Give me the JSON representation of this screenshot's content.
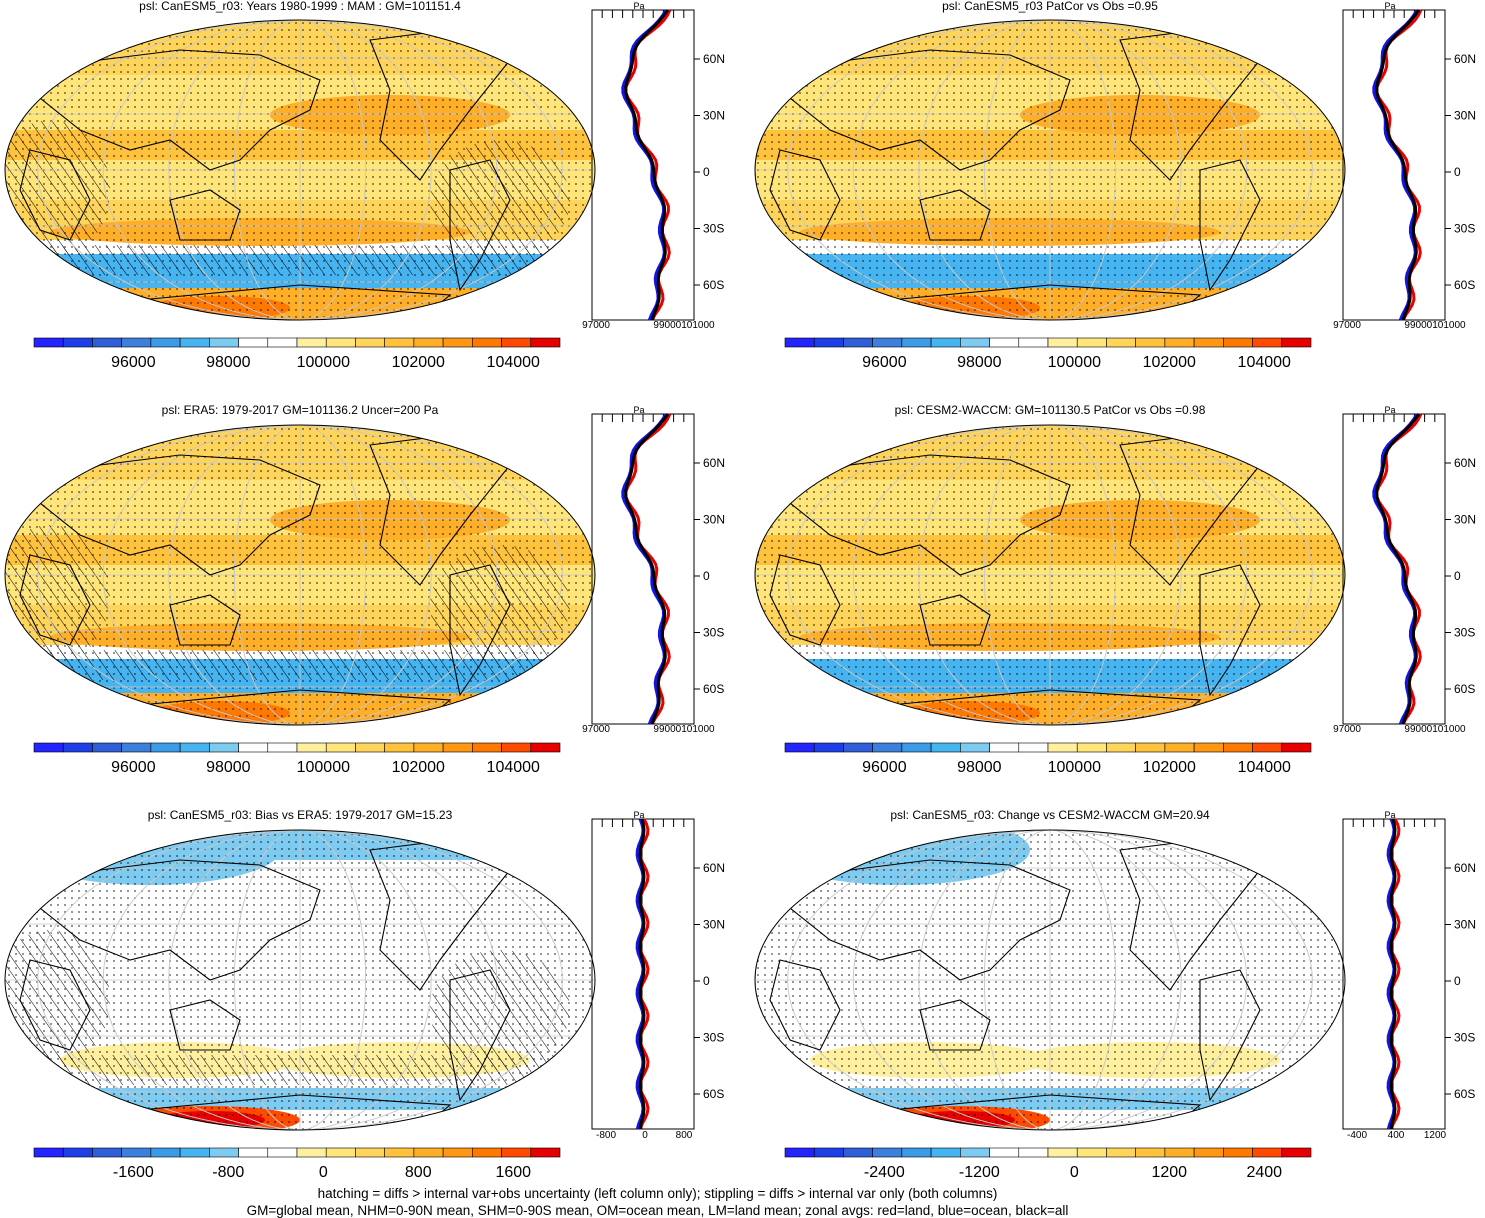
{
  "chart_data": [
    {
      "type": "heatmap",
      "title": "psl: CanESM5_r03: Years 1980-1999 : MAM : GM=101151.4",
      "colorbar": {
        "ticks": [
          "96000",
          "98000",
          "100000",
          "102000",
          "104000"
        ]
      },
      "zonal": {
        "xticks": [
          "97000",
          "99000101000"
        ],
        "yticks": [
          "60N",
          "30N",
          "0",
          "30S",
          "60S"
        ],
        "units": "Pa"
      }
    },
    {
      "type": "heatmap",
      "title": "psl: CanESM5_r03 PatCor vs Obs =0.95",
      "colorbar": {
        "ticks": [
          "96000",
          "98000",
          "100000",
          "102000",
          "104000"
        ]
      },
      "zonal": {
        "xticks": [
          "97000",
          "99000101000"
        ],
        "yticks": [
          "60N",
          "30N",
          "0",
          "30S",
          "60S"
        ],
        "units": "Pa"
      }
    },
    {
      "type": "heatmap",
      "title": "psl: ERA5: 1979-2017 GM=101136.2 Uncer=200 Pa",
      "colorbar": {
        "ticks": [
          "96000",
          "98000",
          "100000",
          "102000",
          "104000"
        ]
      },
      "zonal": {
        "xticks": [
          "97000",
          "99000101000"
        ],
        "yticks": [
          "60N",
          "30N",
          "0",
          "30S",
          "60S"
        ],
        "units": "Pa"
      }
    },
    {
      "type": "heatmap",
      "title": "psl: CESM2-WACCM: GM=101130.5 PatCor vs Obs =0.98",
      "colorbar": {
        "ticks": [
          "96000",
          "98000",
          "100000",
          "102000",
          "104000"
        ]
      },
      "zonal": {
        "xticks": [
          "97000",
          "99000101000"
        ],
        "yticks": [
          "60N",
          "30N",
          "0",
          "30S",
          "60S"
        ],
        "units": "Pa"
      }
    },
    {
      "type": "heatmap",
      "title": "psl: CanESM5_r03: Bias vs ERA5: 1979-2017 GM=15.23",
      "colorbar": {
        "ticks": [
          "-1600",
          "-800",
          "0",
          "800",
          "1600"
        ]
      },
      "zonal": {
        "xticks": [
          "-800",
          "0",
          "800"
        ],
        "yticks": [
          "60N",
          "30N",
          "0",
          "30S",
          "60S"
        ],
        "units": "Pa"
      }
    },
    {
      "type": "heatmap",
      "title": "psl: CanESM5_r03: Change vs CESM2-WACCM GM=20.94",
      "colorbar": {
        "ticks": [
          "-2400",
          "-1200",
          "0",
          "1200",
          "2400"
        ]
      },
      "zonal": {
        "xticks": [
          "-400",
          "400",
          "1200"
        ],
        "yticks": [
          "60N",
          "30N",
          "0",
          "30S",
          "60S"
        ],
        "units": "Pa"
      }
    }
  ],
  "colors": {
    "scale": [
      "#2424ff",
      "#1e3fe8",
      "#2f5fd8",
      "#3c7fdc",
      "#3c9be6",
      "#46b4f0",
      "#7dcbf0",
      "#ffffff",
      "#ffffff",
      "#fff0a0",
      "#ffe57a",
      "#ffd45a",
      "#ffc23c",
      "#ffae28",
      "#ff9614",
      "#ff7800",
      "#ff4a00",
      "#e60000"
    ],
    "land_line": "#000000",
    "grid": "#c8c8c8",
    "zonal_land": "#e60000",
    "zonal_ocean": "#1414e6",
    "zonal_all": "#000000"
  },
  "footer": {
    "line1": "hatching = diffs > internal var+obs uncertainty (left column only); stippling = diffs > internal var only (both columns)",
    "line2": "GM=global mean, NHM=0-90N mean, SHM=0-90S mean, OM=ocean mean, LM=land mean; zonal avgs: red=land, blue=ocean, black=all"
  }
}
